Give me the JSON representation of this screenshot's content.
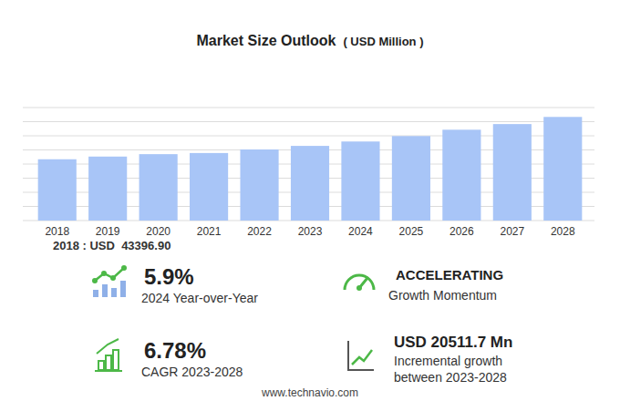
{
  "chart_data": {
    "type": "bar",
    "title": "Market Size Outlook",
    "subtitle": "( USD Million )",
    "categories": [
      "2018",
      "2019",
      "2020",
      "2021",
      "2022",
      "2023",
      "2024",
      "2025",
      "2026",
      "2027",
      "2028"
    ],
    "values": [
      43396.9,
      45300,
      47000,
      47800,
      50300,
      52838,
      55955,
      59800,
      64300,
      68300,
      73350
    ],
    "color": "#a8c5f7",
    "ylim": [
      0,
      80000
    ],
    "yticks": [
      0,
      10000,
      20000,
      30000,
      40000,
      50000,
      60000,
      70000,
      80000
    ],
    "grid": true,
    "tick_labels": "x",
    "base_note": "2018 : USD  43396.90",
    "kpis": [
      {
        "value": "5.9%",
        "label": "2024 Year-over-Year"
      },
      {
        "value": "ACCELERATING",
        "label": "Growth Momentum"
      },
      {
        "value": "6.78%",
        "label": "CAGR 2023-2028"
      },
      {
        "value": "USD 20511.7 Mn",
        "label": "Incremental growth",
        "label2": "between 2023-2028"
      }
    ],
    "footnote": "www.technavio.com"
  }
}
